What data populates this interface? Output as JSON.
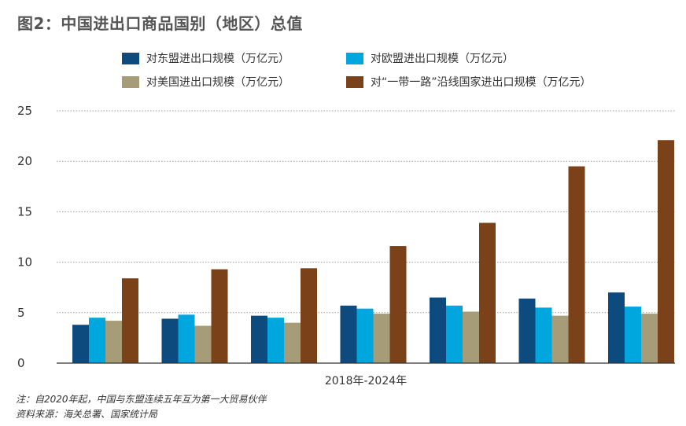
{
  "title": "图2：中国进出口商品国别（地区）总值",
  "notes": [
    "注：自2020年起，中国与东盟连续五年互为第一大贸易伙伴",
    "资料来源：海关总署、国家统计局"
  ],
  "chart_data": {
    "type": "bar",
    "categories": [
      "",
      "",
      "",
      "",
      "",
      "",
      ""
    ],
    "xlabel": "2018年-2024年",
    "ylabel": "",
    "ylim": [
      0,
      25
    ],
    "yticks": [
      0,
      5,
      10,
      15,
      20,
      25
    ],
    "grid": true,
    "legend_position": "top",
    "series": [
      {
        "name": "对东盟进出口规模（万亿元）",
        "color": "#0d4a7e",
        "values": [
          3.8,
          4.4,
          4.7,
          5.7,
          6.5,
          6.4,
          7.0
        ]
      },
      {
        "name": "对欧盟进出口规模（万亿元）",
        "color": "#00a6de",
        "values": [
          4.5,
          4.8,
          4.5,
          5.4,
          5.7,
          5.5,
          5.6
        ]
      },
      {
        "name": "对美国进出口规模（万亿元）",
        "color": "#a79c78",
        "values": [
          4.2,
          3.7,
          4.0,
          4.9,
          5.1,
          4.7,
          4.9
        ]
      },
      {
        "name": "对“一带一路”沿线国家进出口规模（万亿元）",
        "color": "#7b4219",
        "values": [
          8.4,
          9.3,
          9.4,
          11.6,
          13.9,
          19.5,
          22.1
        ]
      }
    ]
  }
}
